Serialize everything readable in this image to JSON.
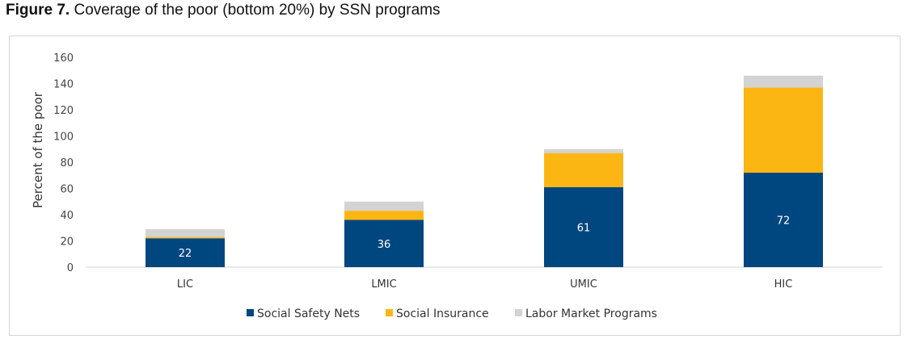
{
  "figure": {
    "label": "Figure 7.",
    "title": "Coverage of the poor (bottom 20%) by SSN programs"
  },
  "chart_data": {
    "type": "bar",
    "stacked": true,
    "ylabel": "Percent of the poor",
    "xlabel": "",
    "ylim": [
      0,
      160
    ],
    "yticks": [
      0,
      20,
      40,
      60,
      80,
      100,
      120,
      140,
      160
    ],
    "grid": false,
    "legend_position": "bottom",
    "categories": [
      "LIC",
      "LMIC",
      "UMIC",
      "HIC"
    ],
    "series": [
      {
        "name": "Social Safety Nets",
        "color": "#00467f",
        "values": [
          22,
          36,
          61,
          72
        ],
        "data_labels": [
          "22",
          "36",
          "61",
          "72"
        ]
      },
      {
        "name": "Social Insurance",
        "color": "#fbb614",
        "values": [
          1,
          7,
          26,
          65
        ]
      },
      {
        "name": "Labor Market Programs",
        "color": "#d3d3d3",
        "values": [
          6,
          7,
          3,
          9
        ]
      }
    ]
  }
}
